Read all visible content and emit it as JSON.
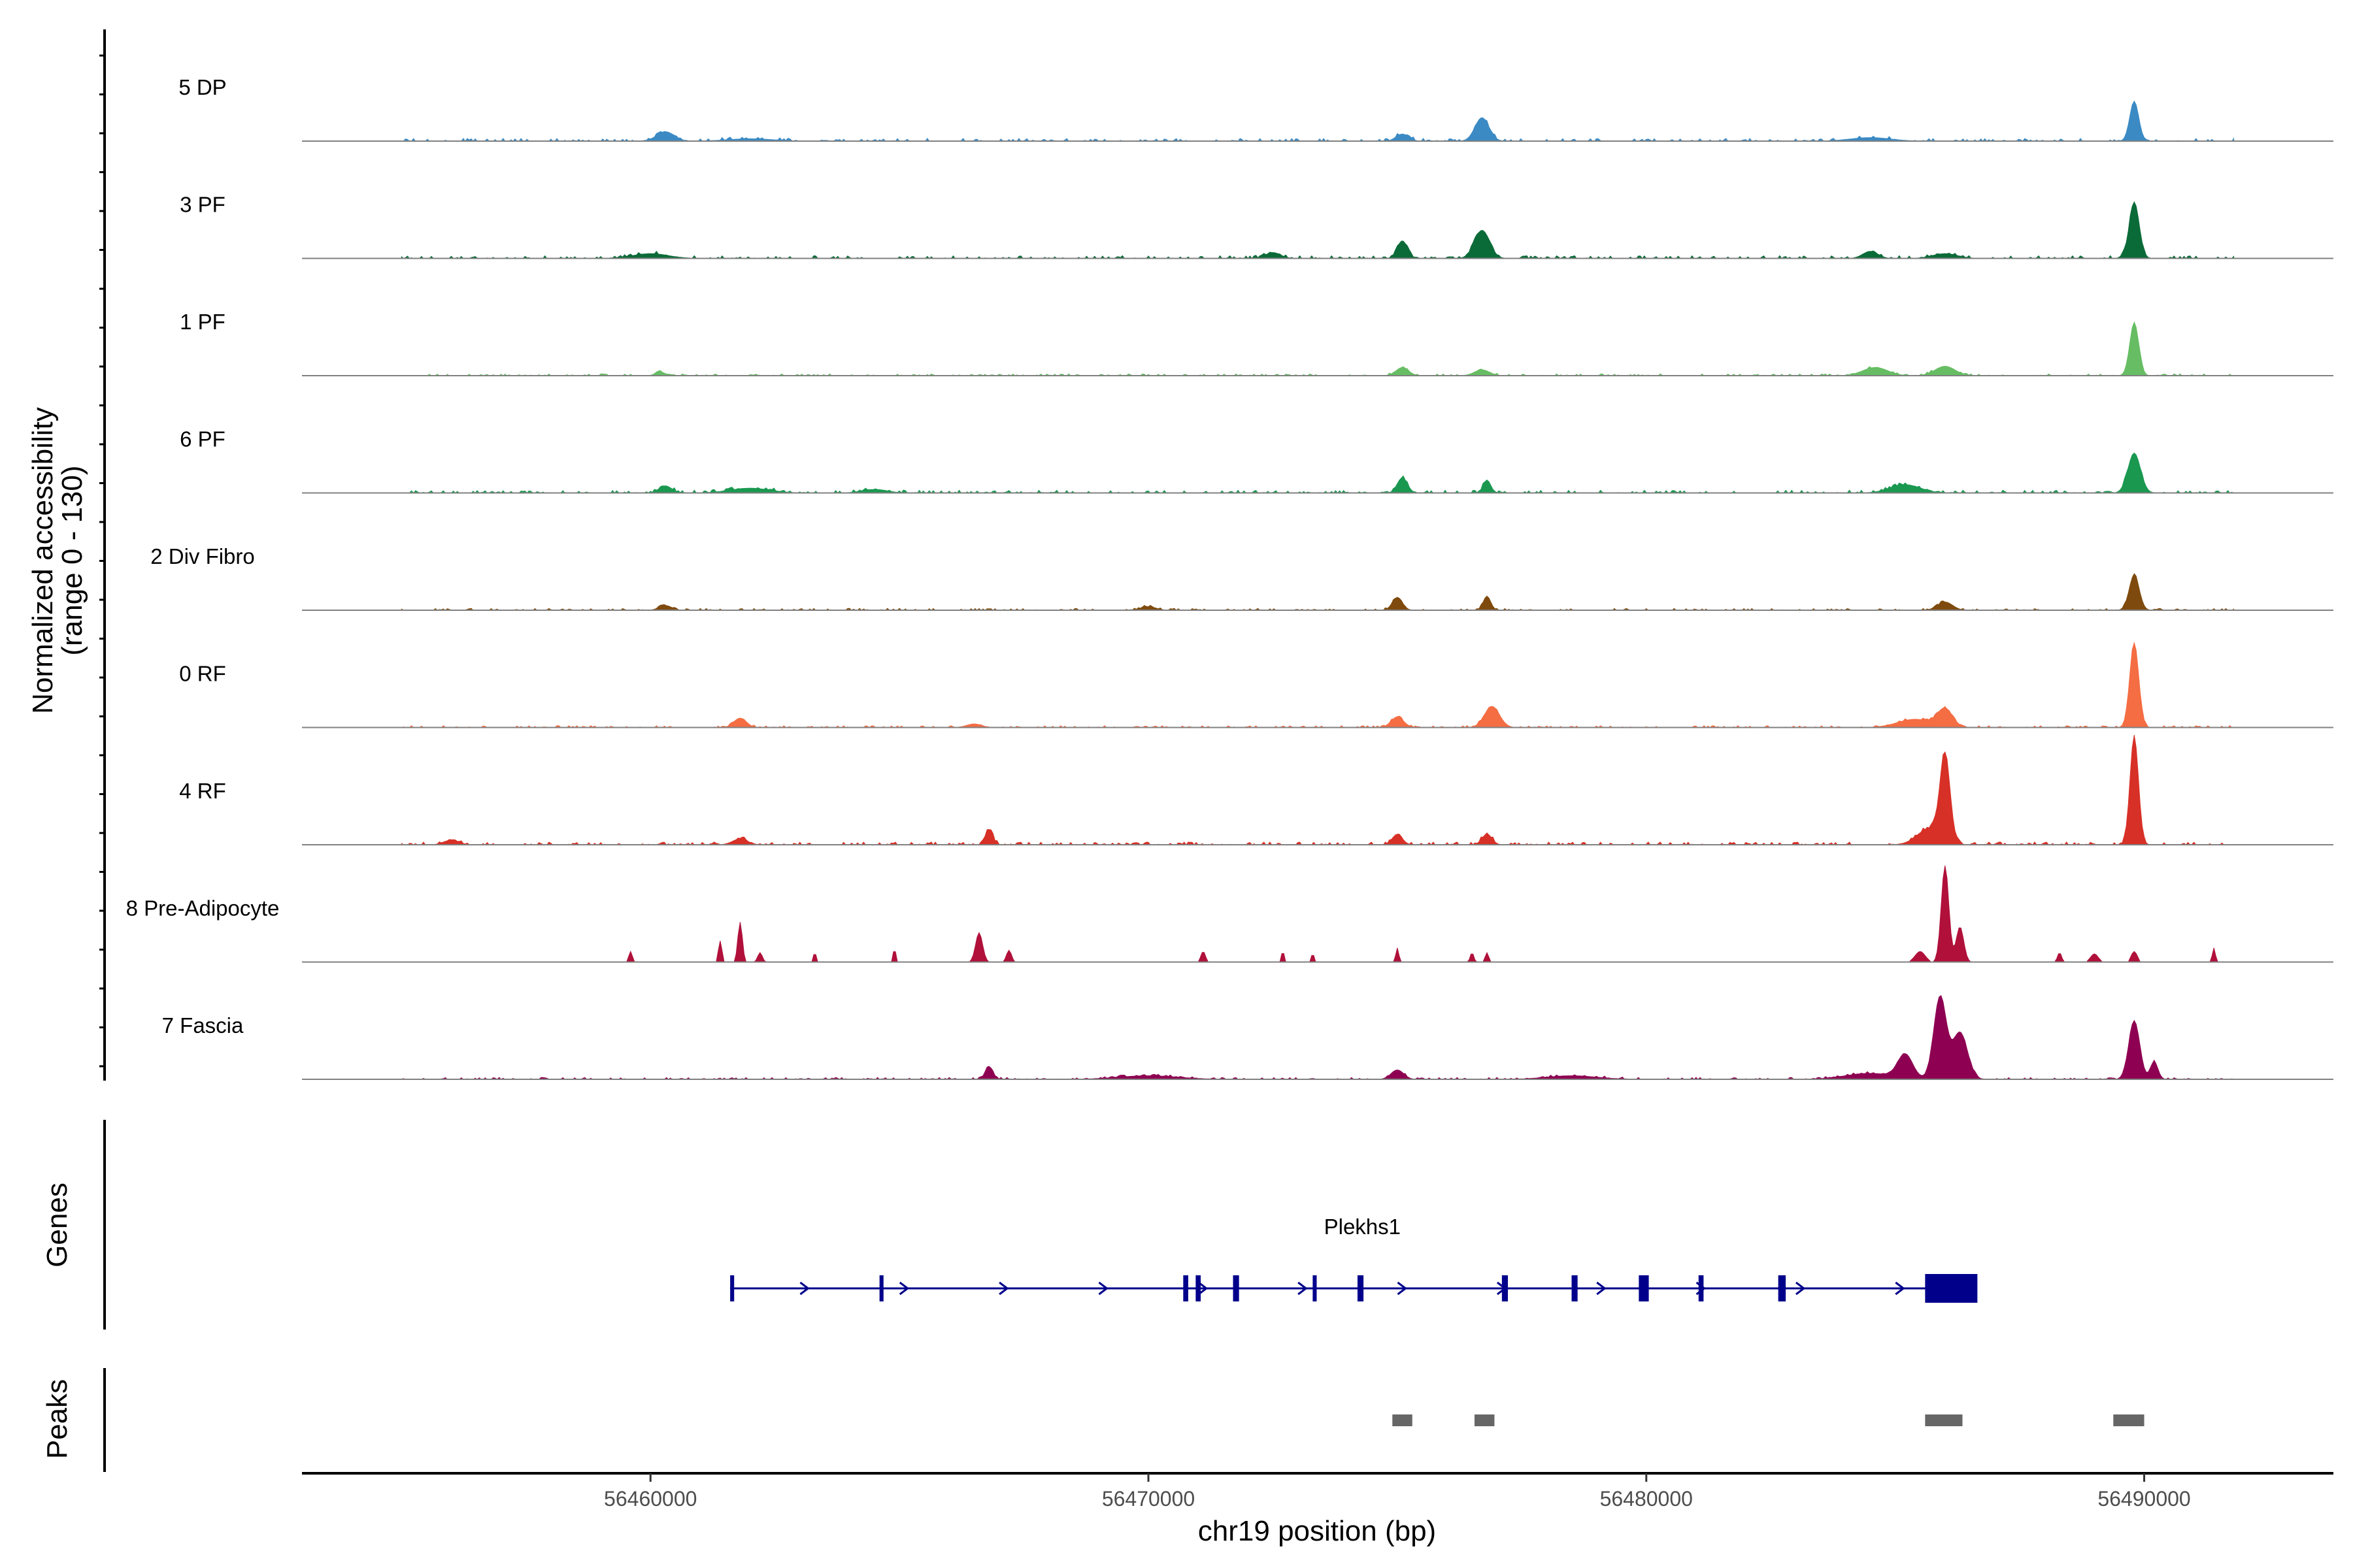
{
  "chart_data": {
    "type": "area",
    "title": "",
    "ylabel": "Normalized accessibility",
    "ylabel_sub": "(range 0 - 130)",
    "ylim": [
      0,
      130
    ],
    "xlabel": "chr19 position (bp)",
    "xlim": [
      56453000,
      56493800
    ],
    "x_ticks": [
      56460000,
      56470000,
      56480000,
      56490000
    ],
    "x_tick_labels": [
      "56460000",
      "56470000",
      "56480000",
      "56490000"
    ],
    "coverage_range": [
      56455000,
      56491800
    ],
    "tracks": [
      {
        "name": "5 DP",
        "color": "#3b8ac4",
        "baseline": 3,
        "peaks": [
          [
            56460300,
            8,
            350
          ],
          [
            56475100,
            6,
            250
          ],
          [
            56476700,
            20,
            280
          ],
          [
            56489800,
            34,
            180
          ],
          [
            56484500,
            3,
            800
          ],
          [
            56462000,
            2,
            900
          ]
        ]
      },
      {
        "name": "3 PF",
        "color": "#0b6b38",
        "baseline": 3,
        "peaks": [
          [
            56460000,
            4,
            700
          ],
          [
            56472500,
            5,
            300
          ],
          [
            56475100,
            15,
            200
          ],
          [
            56476700,
            24,
            300
          ],
          [
            56489800,
            48,
            200
          ],
          [
            56484500,
            6,
            300
          ],
          [
            56486000,
            4,
            500
          ]
        ]
      },
      {
        "name": "1 PF",
        "color": "#66bd63",
        "baseline": 2,
        "peaks": [
          [
            56475100,
            7,
            250
          ],
          [
            56476700,
            5,
            300
          ],
          [
            56484600,
            7,
            500
          ],
          [
            56486000,
            8,
            400
          ],
          [
            56489800,
            45,
            180
          ],
          [
            56460200,
            3,
            200
          ]
        ]
      },
      {
        "name": "6 PF",
        "color": "#1a9850",
        "baseline": 3,
        "peaks": [
          [
            56460300,
            6,
            250
          ],
          [
            56462000,
            4,
            800
          ],
          [
            56475100,
            13,
            200
          ],
          [
            56476800,
            11,
            150
          ],
          [
            56485200,
            7,
            600
          ],
          [
            56489800,
            34,
            250
          ],
          [
            56464500,
            3,
            500
          ]
        ]
      },
      {
        "name": "2 Div Fibro",
        "color": "#7f4a0d",
        "baseline": 2,
        "peaks": [
          [
            56460300,
            4,
            250
          ],
          [
            56475000,
            11,
            200
          ],
          [
            56476800,
            12,
            150
          ],
          [
            56486000,
            7,
            300
          ],
          [
            56489800,
            30,
            200
          ],
          [
            56470000,
            3,
            300
          ]
        ]
      },
      {
        "name": "0 RF",
        "color": "#f46d43",
        "baseline": 2,
        "peaks": [
          [
            56461800,
            8,
            250
          ],
          [
            56475000,
            9,
            250
          ],
          [
            56476900,
            18,
            300
          ],
          [
            56485400,
            7,
            700
          ],
          [
            56486000,
            15,
            300
          ],
          [
            56489800,
            72,
            180
          ],
          [
            56466500,
            3,
            300
          ]
        ]
      },
      {
        "name": "4 RF",
        "color": "#d73027",
        "baseline": 3,
        "peaks": [
          [
            56461800,
            5,
            300
          ],
          [
            56466800,
            13,
            150
          ],
          [
            56475000,
            9,
            200
          ],
          [
            56476800,
            9,
            200
          ],
          [
            56485700,
            14,
            500
          ],
          [
            56486000,
            72,
            200
          ],
          [
            56489800,
            92,
            170
          ],
          [
            56456000,
            4,
            300
          ]
        ]
      },
      {
        "name": "8 Pre-Adipocyte",
        "color": "#b0103a",
        "baseline": 0,
        "peaks": [
          [
            56459600,
            9,
            70
          ],
          [
            56461400,
            18,
            70
          ],
          [
            56461800,
            34,
            90
          ],
          [
            56462200,
            8,
            90
          ],
          [
            56463300,
            8,
            60
          ],
          [
            56464900,
            11,
            60
          ],
          [
            56466600,
            25,
            140
          ],
          [
            56467200,
            10,
            100
          ],
          [
            56471100,
            9,
            90
          ],
          [
            56472700,
            9,
            60
          ],
          [
            56473300,
            7,
            60
          ],
          [
            56475000,
            12,
            60
          ],
          [
            56476500,
            8,
            70
          ],
          [
            56476800,
            8,
            70
          ],
          [
            56485500,
            9,
            200
          ],
          [
            56486000,
            82,
            150
          ],
          [
            56486300,
            30,
            150
          ],
          [
            56488300,
            8,
            80
          ],
          [
            56489000,
            7,
            150
          ],
          [
            56489800,
            9,
            120
          ],
          [
            56491400,
            12,
            60
          ]
        ]
      },
      {
        "name": "7 Fascia",
        "color": "#8e0152",
        "baseline": 2,
        "peaks": [
          [
            56466800,
            11,
            150
          ],
          [
            56475000,
            8,
            250
          ],
          [
            56485200,
            20,
            300
          ],
          [
            56485900,
            70,
            250
          ],
          [
            56486300,
            40,
            300
          ],
          [
            56484500,
            5,
            1000
          ],
          [
            56489800,
            50,
            220
          ],
          [
            56490200,
            15,
            150
          ],
          [
            56470000,
            3,
            1200
          ],
          [
            56478500,
            3,
            1000
          ]
        ]
      }
    ],
    "gene": {
      "name": "Plekhs1",
      "color": "#00008b",
      "start": 56461600,
      "end": 56486600,
      "strand": "+",
      "exons": [
        [
          56461600,
          56461680
        ],
        [
          56464600,
          56464680
        ],
        [
          56470700,
          56470800
        ],
        [
          56470950,
          56471050
        ],
        [
          56471700,
          56471820
        ],
        [
          56473300,
          56473380
        ],
        [
          56474200,
          56474320
        ],
        [
          56477100,
          56477220
        ],
        [
          56478500,
          56478620
        ],
        [
          56479850,
          56480050
        ],
        [
          56481050,
          56481150
        ],
        [
          56482650,
          56482800
        ],
        [
          56485600,
          56486650
        ]
      ]
    },
    "gene_track_label": "Genes",
    "peaks_track_label": "Peaks",
    "peak_regions": [
      [
        56474900,
        56475300
      ],
      [
        56476550,
        56476950
      ],
      [
        56485600,
        56486350
      ],
      [
        56489380,
        56490000
      ]
    ],
    "peak_color": "#666666"
  }
}
